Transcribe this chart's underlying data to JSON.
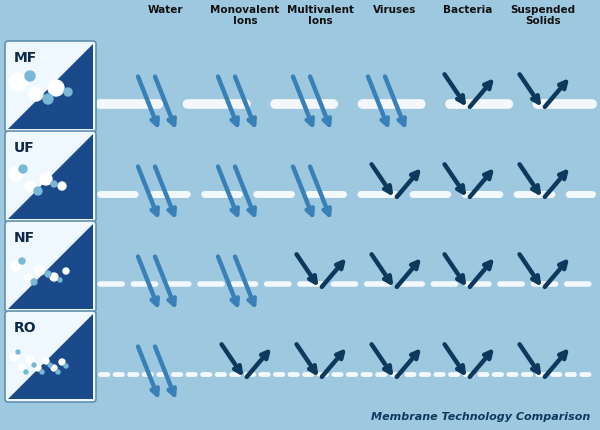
{
  "bg_color": "#9ec8e0",
  "membranes": [
    "MF",
    "UF",
    "NF",
    "RO"
  ],
  "columns": [
    "Water",
    "Monovalent\nIons",
    "Multivalent\nIons",
    "Viruses",
    "Bacteria",
    "Suspended\nSolids"
  ],
  "pass_matrix": [
    [
      true,
      true,
      true,
      true,
      false,
      false
    ],
    [
      true,
      true,
      true,
      false,
      false,
      false
    ],
    [
      true,
      true,
      false,
      false,
      false,
      false
    ],
    [
      true,
      false,
      false,
      false,
      false,
      false
    ]
  ],
  "pass_arrow_color": "#3a80b8",
  "block_arrow_color": "#0d3a5c",
  "header_color": "#111111",
  "title": "Membrane Technology Comparison",
  "title_color": "#0d3a5c",
  "box_bg": "#f0f8ff",
  "box_dark": "#1a4a8a",
  "dot_light": "#7ab8d8",
  "dot_white": "#ffffff",
  "membrane_line_color": "#ffffff"
}
